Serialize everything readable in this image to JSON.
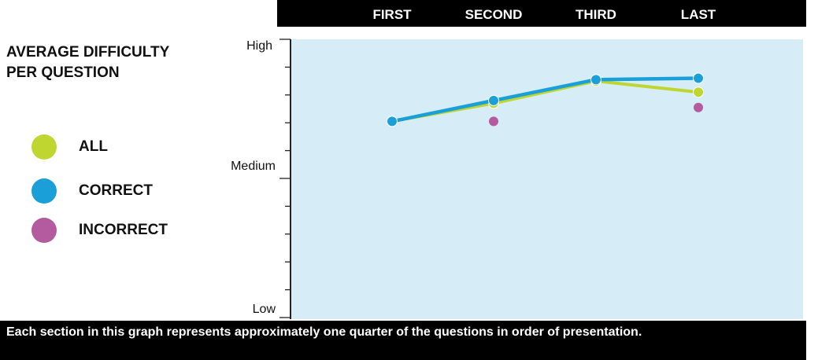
{
  "chart_data": {
    "type": "line",
    "title": "AVERAGE DIFFICULTY PER QUESTION",
    "categories": [
      "FIRST",
      "SECOND",
      "THIRD",
      "LAST"
    ],
    "y_tick_labels": [
      "High",
      "Medium",
      "Low"
    ],
    "ylim": [
      0,
      10
    ],
    "grid": false,
    "legend_position": "left",
    "series": [
      {
        "name": "ALL",
        "color": "#bfd630",
        "values": [
          7.05,
          7.7,
          8.5,
          8.1
        ]
      },
      {
        "name": "CORRECT",
        "color": "#1a9fd8",
        "values": [
          7.05,
          7.8,
          8.55,
          8.6
        ]
      },
      {
        "name": "INCORRECT",
        "color": "#b35b9e",
        "points_only": true,
        "values": [
          null,
          7.05,
          null,
          7.55
        ]
      }
    ],
    "footnote": "Each section in this graph represents approximately one quarter of the questions in order of presentation."
  },
  "colors": {
    "plot_background": "#d6edf8",
    "header_bar": "#000000"
  }
}
